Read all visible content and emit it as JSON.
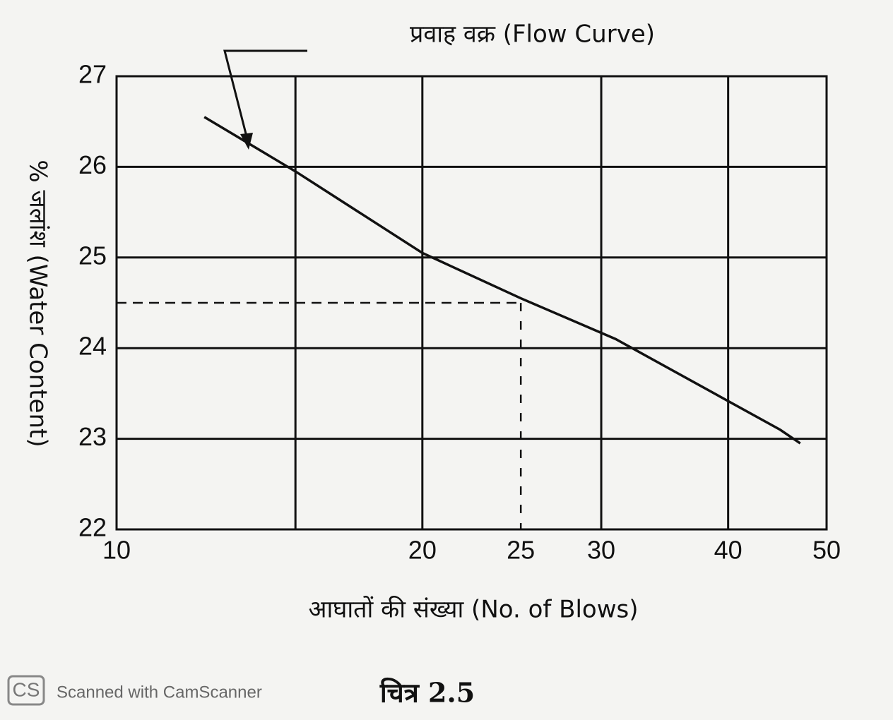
{
  "chart_data": {
    "type": "line",
    "xlabel": "आघातों की संख्या (No. of Blows)",
    "ylabel": "% जलांश (Water Content)",
    "caption": "चित्र 2.5",
    "x_scale": "log",
    "xlim": [
      10,
      50
    ],
    "ylim": [
      22,
      27
    ],
    "xticks": [
      10,
      20,
      25,
      30,
      40,
      50
    ],
    "yticks": [
      22,
      23,
      24,
      25,
      26,
      27
    ],
    "xgrid": [
      15,
      20,
      30,
      40
    ],
    "grid": true,
    "series": [
      {
        "name": "प्रवाह वक्र (Flow Curve)",
        "color": "#111111",
        "x": [
          12.2,
          15,
          20,
          25,
          31,
          45,
          47.1
        ],
        "values": [
          26.55,
          25.95,
          25.05,
          24.55,
          24.1,
          23.1,
          22.95
        ]
      }
    ],
    "reading": {
      "x": 25,
      "y": 24.5
    }
  },
  "watermark": {
    "logo": "CS",
    "text": "Scanned with CamScanner"
  }
}
